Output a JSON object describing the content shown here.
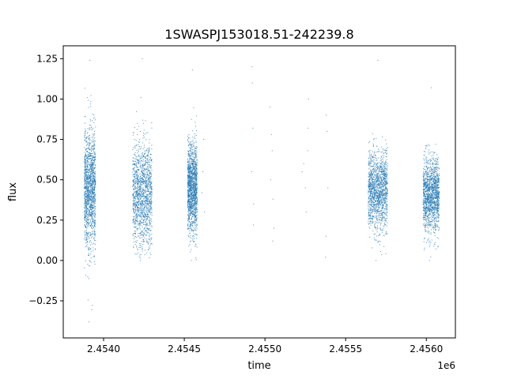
{
  "chart_data": {
    "type": "scatter",
    "title": "1SWASPJ153018.51-242239.8",
    "xlabel": "time",
    "ylabel": "flux",
    "x_offset_label": "1e6",
    "xlim": [
      2453750,
      2456180
    ],
    "ylim": [
      -0.48,
      1.33
    ],
    "x_ticks": [
      2454000,
      2454500,
      2455000,
      2455500,
      2456000
    ],
    "x_tick_labels": [
      "2.4540",
      "2.4545",
      "2.4550",
      "2.4555",
      "2.4560"
    ],
    "y_ticks": [
      -0.25,
      0.0,
      0.25,
      0.5,
      0.75,
      1.0,
      1.25
    ],
    "y_tick_labels": [
      "−0.25",
      "0.00",
      "0.25",
      "0.50",
      "0.75",
      "1.00",
      "1.25"
    ],
    "grid": false,
    "legend": "none",
    "marker_color": "#1f77b4",
    "series": [
      {
        "clusters": [
          {
            "x_range": [
              2453880,
              2453950
            ],
            "y_center": 0.45,
            "y_spread": 0.18,
            "y_min": -0.38,
            "y_max": 1.24
          },
          {
            "x_range": [
              2454180,
              2454300
            ],
            "y_center": 0.41,
            "y_spread": 0.16,
            "y_min": 0.0,
            "y_max": 1.25
          },
          {
            "x_range": [
              2454520,
              2454580
            ],
            "y_center": 0.44,
            "y_spread": 0.14,
            "y_min": 0.0,
            "y_max": 1.18
          },
          {
            "x_range": [
              2455640,
              2455760
            ],
            "y_center": 0.43,
            "y_spread": 0.12,
            "y_min": 0.0,
            "y_max": 1.24
          },
          {
            "x_range": [
              2455980,
              2456080
            ],
            "y_center": 0.41,
            "y_spread": 0.11,
            "y_min": 0.0,
            "y_max": 1.07
          }
        ],
        "sparse_points": [
          [
            2454620,
            0.75
          ],
          [
            2454615,
            0.55
          ],
          [
            2454610,
            0.42
          ],
          [
            2454625,
            0.3
          ],
          [
            2454920,
            1.2
          ],
          [
            2454922,
            1.1
          ],
          [
            2454925,
            0.82
          ],
          [
            2454918,
            0.55
          ],
          [
            2454930,
            0.35
          ],
          [
            2454928,
            0.22
          ],
          [
            2455030,
            0.95
          ],
          [
            2455040,
            0.78
          ],
          [
            2455045,
            0.68
          ],
          [
            2455035,
            0.5
          ],
          [
            2455050,
            0.38
          ],
          [
            2455055,
            0.2
          ],
          [
            2455048,
            0.12
          ],
          [
            2455230,
            0.55
          ],
          [
            2455240,
            0.6
          ],
          [
            2455250,
            0.45
          ],
          [
            2455255,
            0.3
          ],
          [
            2455270,
            1.0
          ],
          [
            2455268,
            0.82
          ],
          [
            2455265,
            0.68
          ],
          [
            2455380,
            0.9
          ],
          [
            2455385,
            0.8
          ],
          [
            2455390,
            0.45
          ],
          [
            2455378,
            0.15
          ],
          [
            2455375,
            0.02
          ]
        ]
      }
    ]
  }
}
